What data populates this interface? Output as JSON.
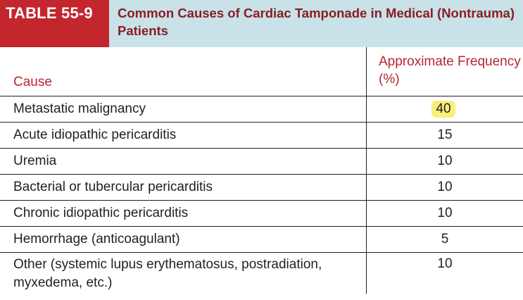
{
  "table": {
    "label": "TABLE 55-9",
    "title": "Common Causes of Cardiac Tamponade in Medical (Nontrauma) Patients",
    "header": {
      "cause": "Cause",
      "frequency": "Approximate Frequency (%)"
    },
    "rows": [
      {
        "cause": "Metastatic malignancy",
        "frequency": "40"
      },
      {
        "cause": "Acute idiopathic pericarditis",
        "frequency": "15"
      },
      {
        "cause": "Uremia",
        "frequency": "10"
      },
      {
        "cause": "Bacterial or tubercular pericarditis",
        "frequency": "10"
      },
      {
        "cause": "Chronic idiopathic pericarditis",
        "frequency": "10"
      },
      {
        "cause": "Hemorrhage (anticoagulant)",
        "frequency": "5"
      },
      {
        "cause": "Other (systemic lupus erythematosus, postradiation, myxedema, etc.)",
        "frequency": "10"
      }
    ]
  },
  "colors": {
    "label_bg": "#c4262e",
    "title_bg": "#c8e2e8",
    "title_text": "#8b1d24",
    "header_text": "#b8262f",
    "highlight": "#f7ef7a"
  }
}
